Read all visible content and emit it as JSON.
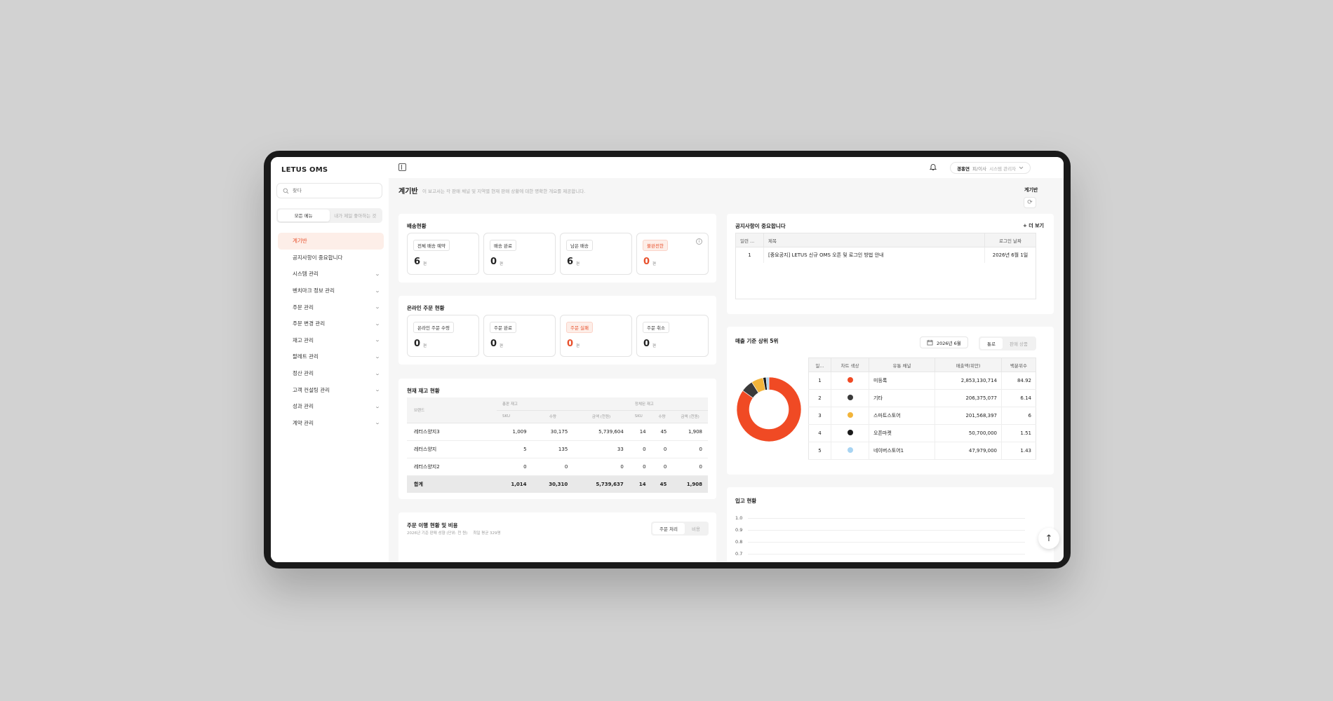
{
  "app": {
    "brand": "LETUS OMS"
  },
  "sidebar": {
    "search_placeholder": "찾다",
    "tabs": [
      "모든 메뉴",
      "내가 제일 좋아하는 것"
    ],
    "items": [
      {
        "label": "계기반",
        "icon": "dashboard-icon",
        "active": true,
        "expandable": false
      },
      {
        "label": "공지사항이 중요합니다",
        "icon": "megaphone-icon",
        "active": false,
        "expandable": false
      },
      {
        "label": "시스템 관리",
        "icon": "gear-icon",
        "active": false,
        "expandable": true
      },
      {
        "label": "벤치마크 정보 관리",
        "icon": "folder-icon",
        "active": false,
        "expandable": true
      },
      {
        "label": "주문 관리",
        "icon": "cart-icon",
        "active": false,
        "expandable": true
      },
      {
        "label": "주문 변경 관리",
        "icon": "refresh-icon",
        "active": false,
        "expandable": true
      },
      {
        "label": "재고 관리",
        "icon": "boxes-icon",
        "active": false,
        "expandable": true
      },
      {
        "label": "팔레트 관리",
        "icon": "layers-icon",
        "active": false,
        "expandable": true
      },
      {
        "label": "정산 관리",
        "icon": "calculator-icon",
        "active": false,
        "expandable": true
      },
      {
        "label": "고객 컨설팅 관리",
        "icon": "chat-icon",
        "active": false,
        "expandable": true
      },
      {
        "label": "성과 관리",
        "icon": "bar-chart-icon",
        "active": false,
        "expandable": true
      },
      {
        "label": "계약 관리",
        "icon": "document-icon",
        "active": false,
        "expandable": true
      }
    ]
  },
  "topbar": {
    "user_name": "경홍연",
    "user_role": "피/이사",
    "user_dept": "시스템 관리자"
  },
  "page": {
    "title": "계기반",
    "description": "이 보고서는 각 판매 채널 및 지역별 현재 판매 상황에 대한 명확한 개요를 제공합니다.",
    "corner_title": "계기반"
  },
  "shipping": {
    "title": "배송현황",
    "stats": [
      {
        "label": "전체 배송 예약",
        "value": "6",
        "unit": "편",
        "alert": false
      },
      {
        "label": "배송 완료",
        "value": "0",
        "unit": "편",
        "alert": false
      },
      {
        "label": "남은 배송",
        "value": "6",
        "unit": "편",
        "alert": false
      },
      {
        "label": "불완전한",
        "value": "0",
        "unit": "편",
        "alert": true
      }
    ]
  },
  "online_orders": {
    "title": "온라인 주문 현황",
    "stats": [
      {
        "label": "온라인 주문 수령",
        "value": "0",
        "unit": "편",
        "alert": false
      },
      {
        "label": "주문 완료",
        "value": "0",
        "unit": "편",
        "alert": false
      },
      {
        "label": "주문 실패",
        "value": "0",
        "unit": "편",
        "alert": true
      },
      {
        "label": "주문 취소",
        "value": "0",
        "unit": "편",
        "alert": false
      }
    ]
  },
  "inventory": {
    "title": "현재 재고 현황",
    "group_headers": [
      "브랜드",
      "총판 재고",
      "정체된 재고"
    ],
    "sub_headers": [
      "SKU",
      "수량",
      "금액 (천원)",
      "SKU",
      "수량",
      "금액 (천원)"
    ],
    "rows": [
      {
        "name": "레터스양지3",
        "cells": [
          "1,009",
          "30,175",
          "5,739,604",
          "14",
          "45",
          "1,908"
        ]
      },
      {
        "name": "레터스양지",
        "cells": [
          "5",
          "135",
          "33",
          "0",
          "0",
          "0"
        ]
      },
      {
        "name": "레터스양지2",
        "cells": [
          "0",
          "0",
          "0",
          "0",
          "0",
          "0"
        ]
      }
    ],
    "total": {
      "name": "합계",
      "cells": [
        "1,014",
        "30,310",
        "5,739,637",
        "14",
        "45",
        "1,908"
      ]
    }
  },
  "order_trend": {
    "title": "주문 이행 현황 및 비용",
    "subtitle": "2026년 기준 판매 성향 (단위: 천 원)",
    "subtitle_extra": "최일 평균 329명",
    "tabs": [
      "주문 처리",
      "비용"
    ]
  },
  "notices": {
    "title": "공지사항이 중요합니다",
    "more": "+ 더 보기",
    "headers": [
      "일련 ...",
      "제목",
      "로그인 날짜"
    ],
    "rows": [
      {
        "no": "1",
        "title": "[중요공지] LETUS 신규 OMS 오픈 및 로그인 방법 안내",
        "date": "2026년 6월 1일"
      }
    ]
  },
  "top_sales": {
    "title": "매출 기준 상위 5위",
    "date_label": "2026년 6월",
    "tabs": [
      "통로",
      "판매 상품"
    ],
    "headers": [
      "일...",
      "차트 색상",
      "유통 채널",
      "매출액(위안)",
      "백분위수"
    ],
    "colors": [
      "#f04a24",
      "#3a3a3a",
      "#f2b43a",
      "#1a1a1a",
      "#a8d4f2"
    ],
    "rows": [
      {
        "rank": "1",
        "channel": "미등록",
        "amount": "2,853,130,714",
        "pct": "84.92"
      },
      {
        "rank": "2",
        "channel": "기타",
        "amount": "206,375,077",
        "pct": "6.14"
      },
      {
        "rank": "3",
        "channel": "스마트스토어",
        "amount": "201,568,397",
        "pct": "6"
      },
      {
        "rank": "4",
        "channel": "오픈마켓",
        "amount": "50,700,000",
        "pct": "1.51"
      },
      {
        "rank": "5",
        "channel": "네이버스토어1",
        "amount": "47,979,000",
        "pct": "1.43"
      }
    ]
  },
  "inbound": {
    "title": "입고 현황",
    "y_ticks": [
      "1.0",
      "0.9",
      "0.8",
      "0.7"
    ]
  }
}
